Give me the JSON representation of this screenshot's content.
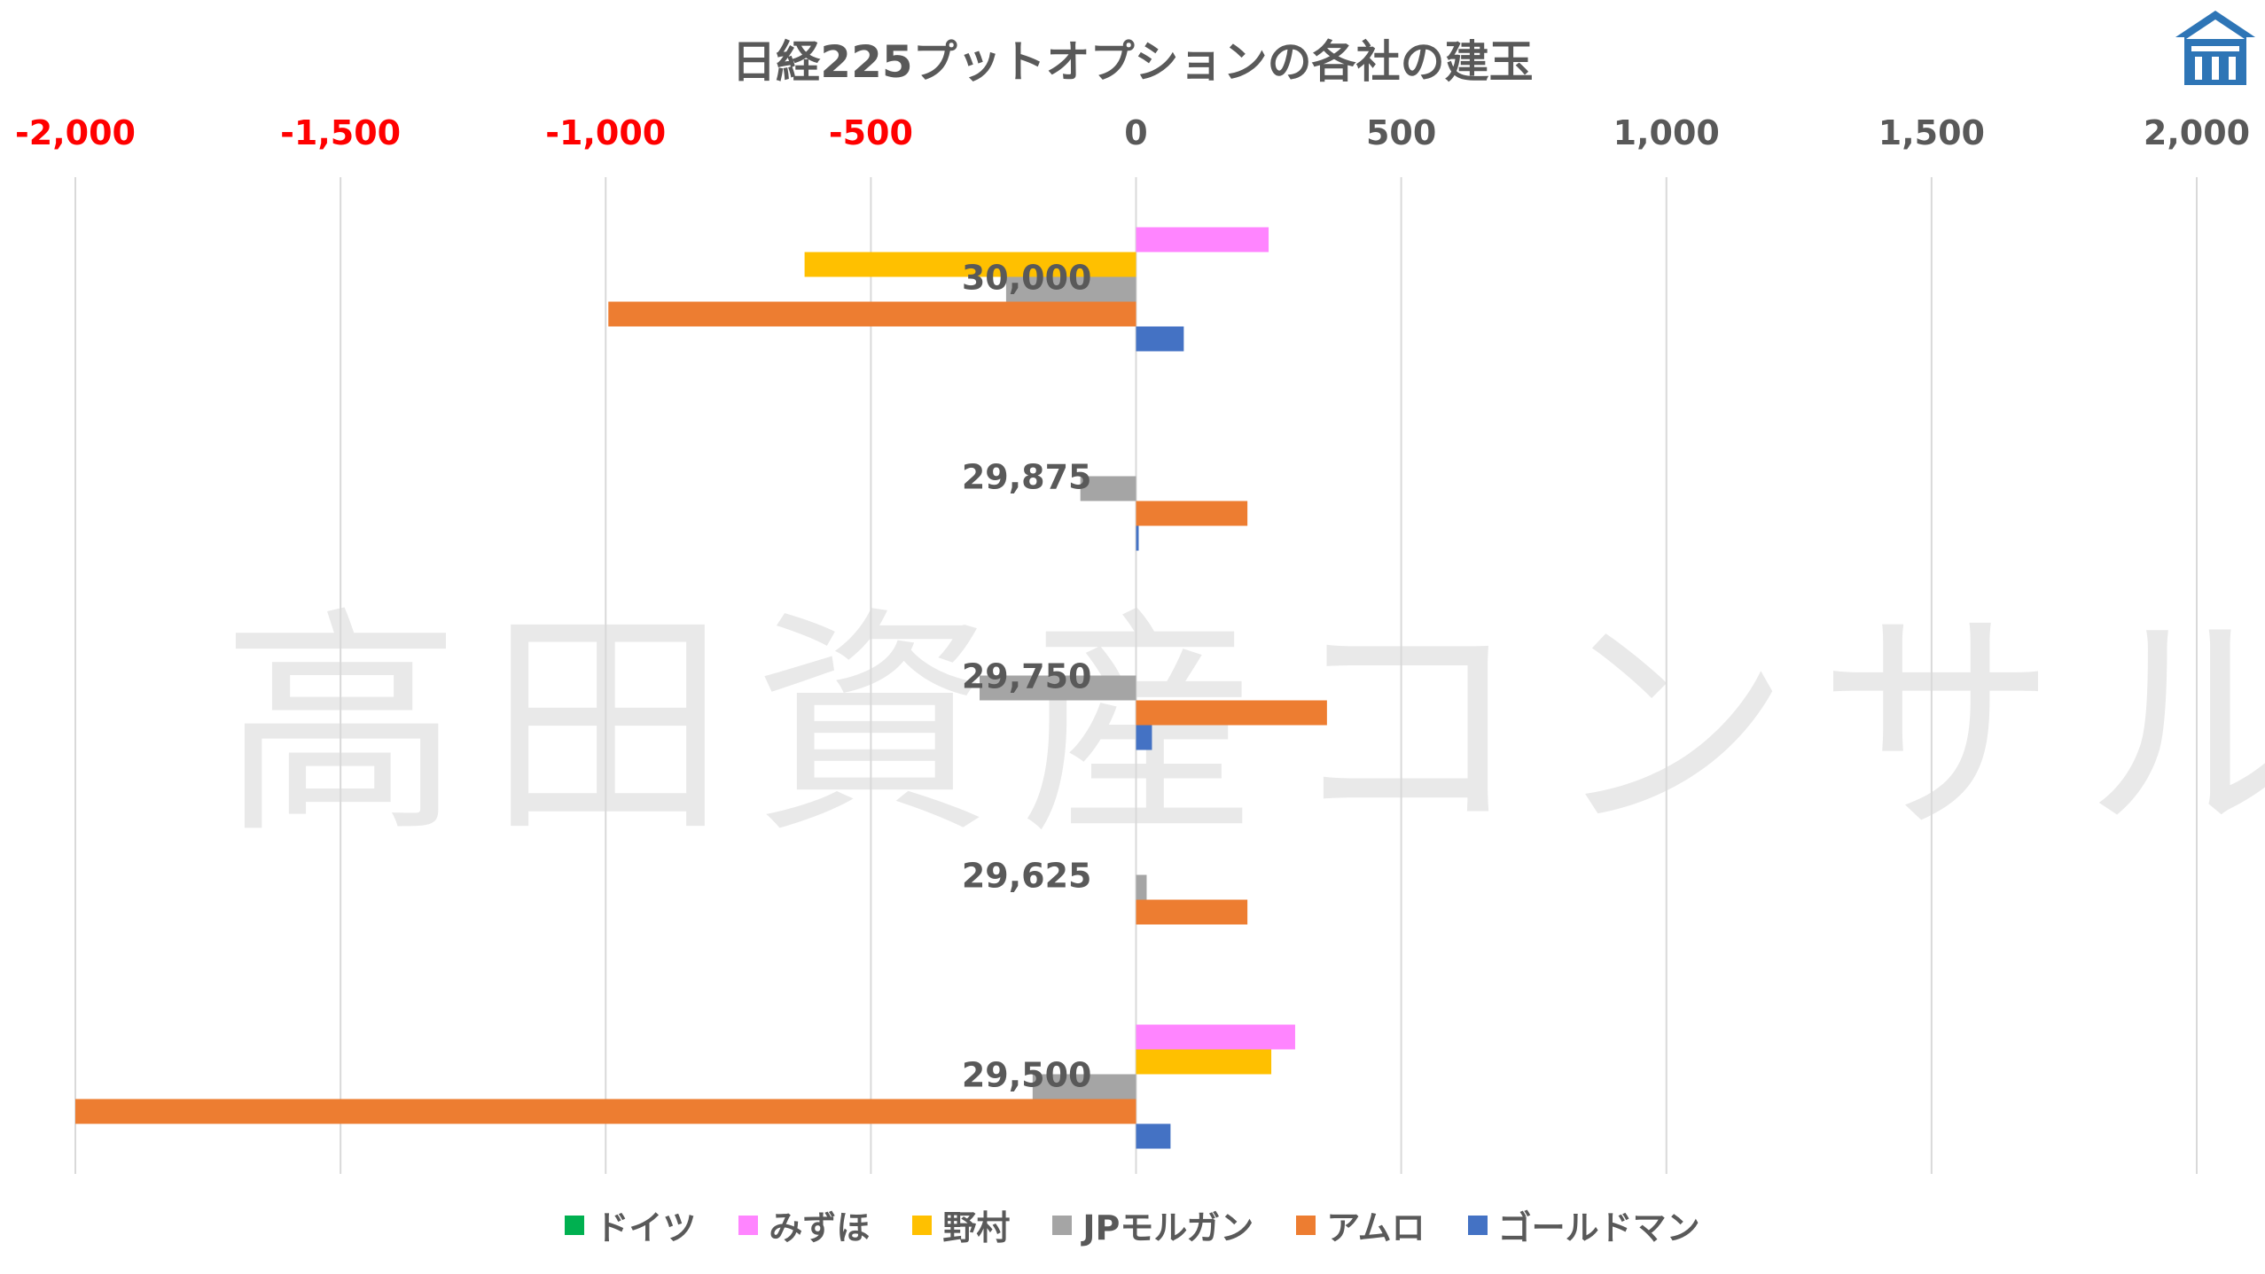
{
  "watermark": "高田資産コンサル",
  "colors": {
    "text": "#595959",
    "negative_tick": "#ff0000",
    "grid": "#d9d9d9",
    "logo": "#2e75b6"
  },
  "chart_data": {
    "type": "bar",
    "orientation": "horizontal",
    "title": "日経225プットオプションの各社の建玉",
    "categories": [
      "30,000",
      "29,875",
      "29,750",
      "29,625",
      "29,500"
    ],
    "xlim": [
      -2000,
      2000
    ],
    "xticks": [
      -2000,
      -1500,
      -1000,
      -500,
      0,
      500,
      1000,
      1500,
      2000
    ],
    "xtick_labels": [
      "-2,000",
      "-1,500",
      "-1,000",
      "-500",
      "0",
      "500",
      "1,000",
      "1,500",
      "2,000"
    ],
    "grid": true,
    "legend_position": "bottom",
    "series": [
      {
        "name": "ドイツ",
        "color": "#00b050",
        "values": [
          0,
          0,
          0,
          0,
          0
        ]
      },
      {
        "name": "みずほ",
        "color": "#ff85ff",
        "values": [
          250,
          0,
          0,
          0,
          300
        ]
      },
      {
        "name": "野村",
        "color": "#ffc000",
        "values": [
          -625,
          0,
          0,
          0,
          255
        ]
      },
      {
        "name": "JPモルガン",
        "color": "#a5a5a5",
        "values": [
          -245,
          -105,
          -295,
          20,
          -195
        ]
      },
      {
        "name": "アムロ",
        "color": "#ed7d31",
        "values": [
          -995,
          210,
          360,
          210,
          -2000
        ]
      },
      {
        "name": "ゴールドマン",
        "color": "#4472c4",
        "values": [
          90,
          5,
          30,
          0,
          65
        ]
      }
    ]
  }
}
